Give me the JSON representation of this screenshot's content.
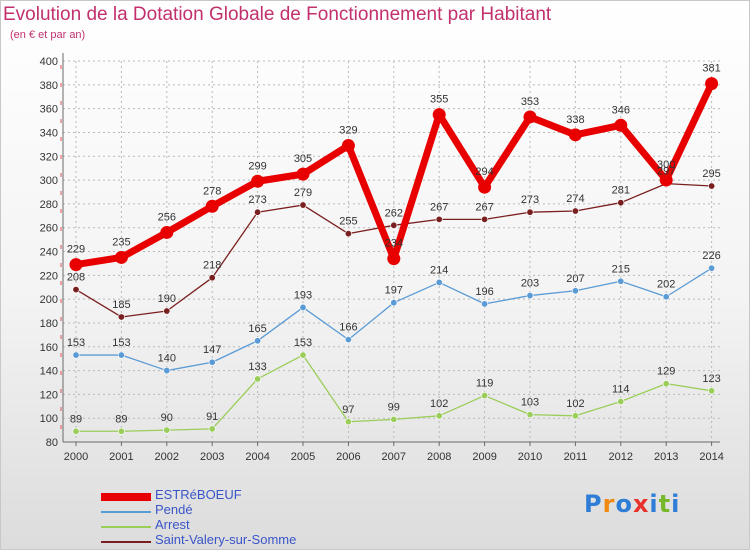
{
  "title": "Evolution de la Dotation Globale de Fonctionnement par Habitant",
  "subtitle": "(en € et par an)",
  "logo": [
    "P",
    "r",
    "o",
    "x",
    "i",
    "t",
    "i"
  ],
  "logo_colors": [
    "#2e7dd6",
    "#f08a10",
    "#2e7dd6",
    "#e8312a",
    "#2e7dd6",
    "#76b82a",
    "#2e7dd6"
  ],
  "colors": {
    "title": "#c2306e",
    "grid": "#b9b9b9",
    "axis": "#6a6a6a",
    "label": "#4a4a4a"
  },
  "chart_data": {
    "type": "line",
    "title": "Evolution de la Dotation Globale de Fonctionnement par Habitant",
    "subtitle": "(en € et par an)",
    "xlabel": "",
    "ylabel": "",
    "x": [
      "2000",
      "2001",
      "2002",
      "2003",
      "2004",
      "2005",
      "2006",
      "2007",
      "2008",
      "2009",
      "2010",
      "2011",
      "2012",
      "2013",
      "2014"
    ],
    "ylim": [
      80,
      400
    ],
    "yticks": [
      80,
      100,
      120,
      140,
      160,
      180,
      200,
      220,
      240,
      260,
      280,
      300,
      320,
      340,
      360,
      380,
      400
    ],
    "grid": true,
    "legend_position": "bottom-left",
    "series": [
      {
        "name": "ESTRéBOEUF",
        "color": "#e80000",
        "style": "bold",
        "values": [
          229,
          235,
          256,
          278,
          299,
          305,
          329,
          234,
          355,
          294,
          353,
          338,
          346,
          300,
          381
        ]
      },
      {
        "name": "Pendé",
        "color": "#5b9bd5",
        "style": "thin",
        "values": [
          153,
          153,
          140,
          147,
          165,
          193,
          166,
          197,
          214,
          196,
          203,
          207,
          215,
          202,
          226
        ]
      },
      {
        "name": "Arrest",
        "color": "#9acd5a",
        "style": "thin",
        "values": [
          89,
          89,
          90,
          91,
          133,
          153,
          97,
          99,
          102,
          119,
          103,
          102,
          114,
          129,
          123
        ]
      },
      {
        "name": "Saint-Valery-sur-Somme",
        "color": "#7a1f1f",
        "style": "thin",
        "values": [
          208,
          185,
          190,
          218,
          273,
          279,
          255,
          262,
          267,
          267,
          273,
          274,
          281,
          297,
          295
        ]
      }
    ]
  }
}
